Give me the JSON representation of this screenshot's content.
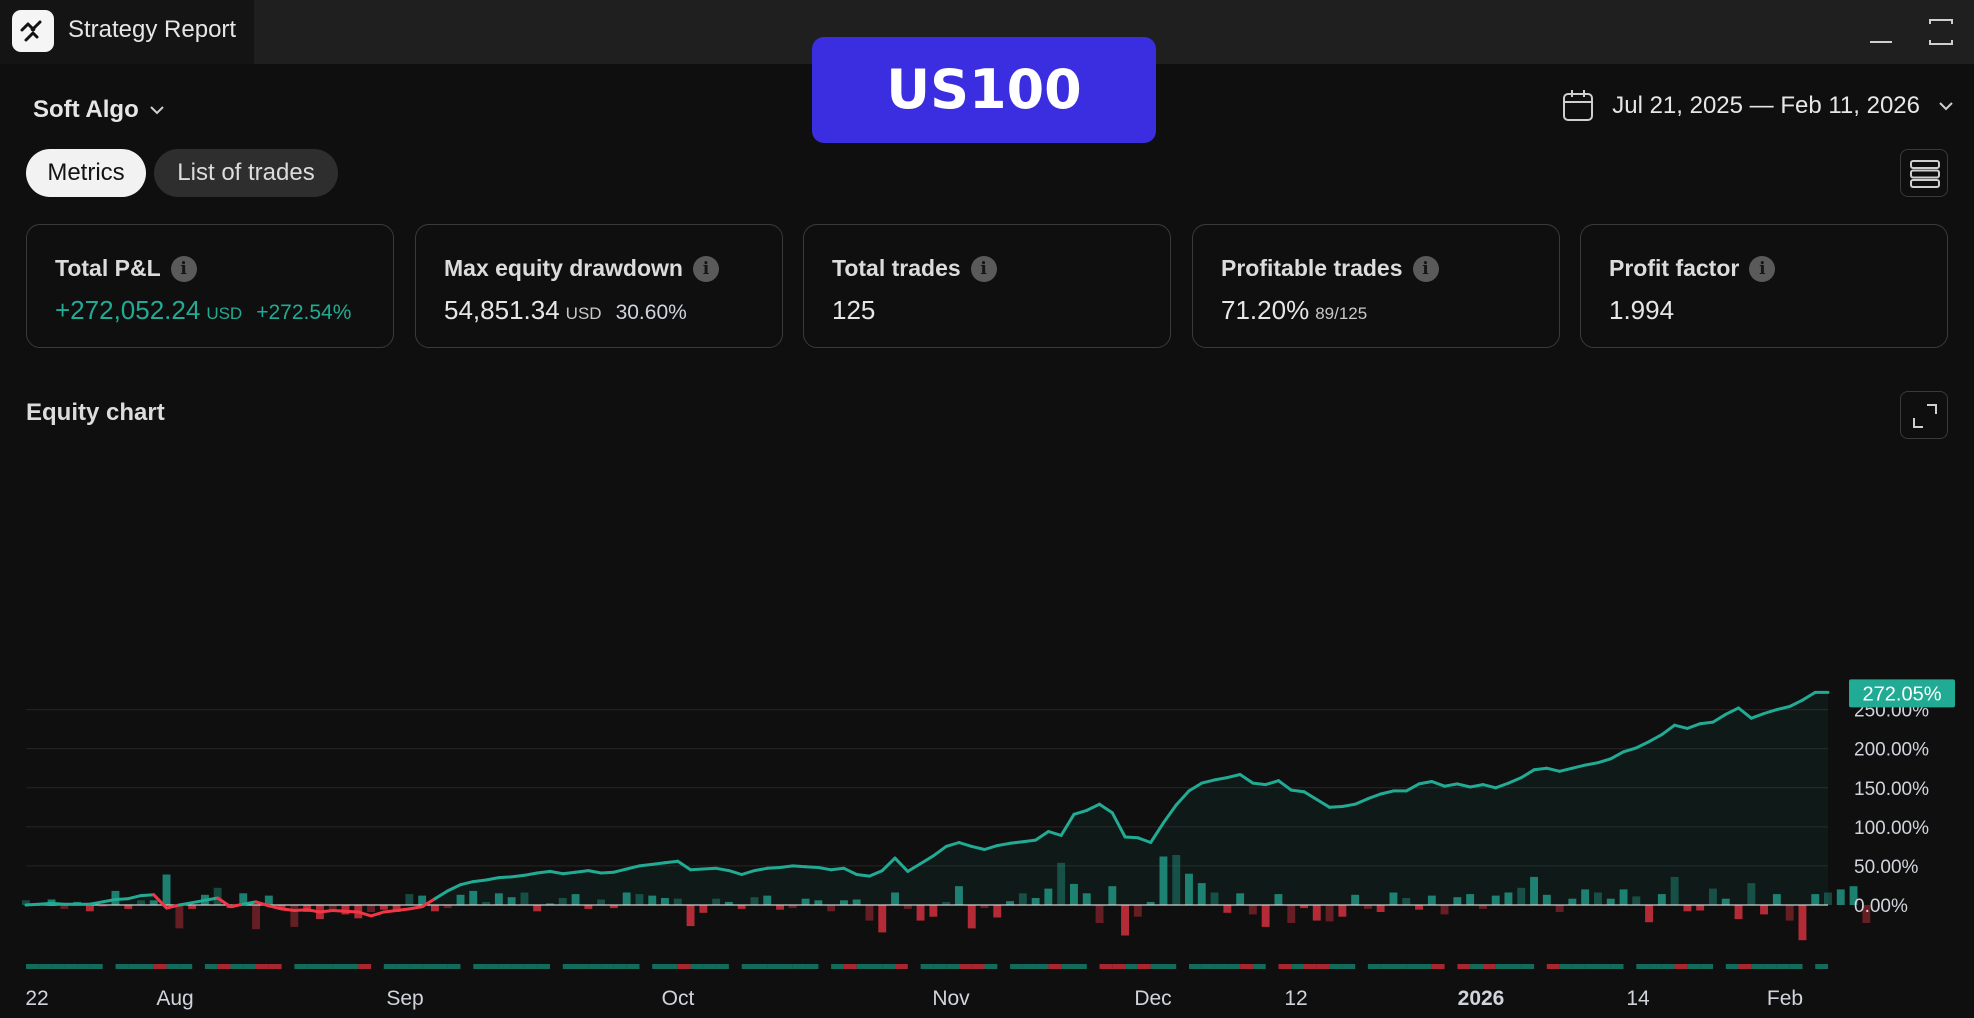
{
  "window": {
    "title": "Strategy Report",
    "app_icon": "strategy-report-icon"
  },
  "symbol": "US100",
  "strategy": {
    "name": "Soft Algo"
  },
  "date_range": "Jul 21, 2025 — Feb 11, 2026",
  "tabs": [
    {
      "label": "Metrics",
      "active": true
    },
    {
      "label": "List of trades",
      "active": false
    }
  ],
  "metrics": [
    {
      "title": "Total P&L",
      "value": "+272,052.24",
      "unit": "USD",
      "percent": "+272.54%",
      "color": "#22ab94"
    },
    {
      "title": "Max equity drawdown",
      "value": "54,851.34",
      "unit": "USD",
      "percent": "30.60%"
    },
    {
      "title": "Total trades",
      "value": "125"
    },
    {
      "title": "Profitable trades",
      "value": "71.20%",
      "unit": "89/125"
    },
    {
      "title": "Profit factor",
      "value": "1.994"
    }
  ],
  "equity_chart": {
    "title": "Equity chart"
  },
  "colors": {
    "accent": "#22ab94",
    "loss": "#f23645",
    "badge": "#3a2ee0",
    "background": "#0f0f0f"
  },
  "chart_data": {
    "type": "line",
    "title": "Equity chart",
    "y_unit": "%",
    "ylim": [
      -40,
      290
    ],
    "y_ticks": [
      "250.00%",
      "200.00%",
      "150.00%",
      "100.00%",
      "50.00%",
      "0.00%"
    ],
    "x_ticks": [
      "22",
      "Aug",
      "Sep",
      "Oct",
      "Nov",
      "Dec",
      "12",
      "2026",
      "14",
      "Feb"
    ],
    "last_value_label": "272.05%",
    "series": [
      {
        "values": [
          0,
          1,
          2,
          1,
          1,
          1,
          4,
          7,
          8,
          12,
          13,
          -4,
          0,
          3,
          6,
          9,
          -2,
          1,
          4,
          -1,
          -5,
          -7,
          -6,
          -9,
          -7,
          -8,
          -9,
          -14,
          -9,
          -7,
          -5,
          -2,
          8,
          18,
          26,
          30,
          32,
          35,
          36,
          38,
          41,
          43,
          40,
          42,
          44,
          41,
          42,
          46,
          50,
          52,
          54,
          56,
          45,
          46,
          47,
          44,
          39,
          44,
          47,
          48,
          50,
          49,
          48,
          45,
          47,
          39,
          37,
          44,
          60,
          43,
          53,
          63,
          75,
          80,
          75,
          71,
          76,
          79,
          81,
          83,
          94,
          89,
          116,
          121,
          129,
          118,
          87,
          86,
          80,
          105,
          128,
          146,
          156,
          160,
          163,
          167,
          156,
          154,
          159,
          147,
          145,
          135,
          125,
          126,
          129,
          136,
          142,
          146,
          146,
          155,
          158,
          152,
          155,
          151,
          154,
          150,
          156,
          163,
          173,
          175,
          171,
          175,
          179,
          182,
          187,
          196,
          201,
          209,
          218,
          230,
          226,
          232,
          234,
          244,
          252,
          239,
          245,
          250,
          254,
          262,
          272,
          272
        ]
      },
      {
        "values": [
          6,
          2,
          7,
          -5,
          4,
          -8,
          -2,
          18,
          -5,
          6,
          6,
          39,
          -30,
          -5,
          13,
          22,
          -4,
          15,
          -31,
          12,
          -6,
          -28,
          -9,
          -18,
          -6,
          -12,
          -17,
          -9,
          -6,
          -9,
          14,
          12,
          -8,
          -4,
          13,
          18,
          4,
          15,
          10,
          16,
          -8,
          2,
          9,
          14,
          -5,
          7,
          -4,
          16,
          14,
          12,
          9,
          8,
          -27,
          -10,
          8,
          4,
          -5,
          10,
          12,
          -6,
          -4,
          8,
          6,
          -8,
          6,
          7,
          -20,
          -35,
          16,
          -5,
          -20,
          -15,
          4,
          24,
          -30,
          -4,
          -16,
          5,
          15,
          9,
          21,
          54,
          27,
          15,
          -23,
          24,
          -39,
          -15,
          4,
          62,
          64,
          40,
          28,
          16,
          -10,
          15,
          -12,
          -28,
          14,
          -23,
          -4,
          -20,
          -21,
          -15,
          13,
          -5,
          -9,
          16,
          9,
          -6,
          12,
          -12,
          10,
          14,
          -5,
          12,
          16,
          22,
          36,
          13,
          -9,
          8,
          20,
          16,
          8,
          20,
          11,
          -22,
          14,
          36,
          -8,
          -7,
          21,
          8,
          -18,
          28,
          -12,
          14,
          -20,
          -45,
          14,
          16,
          20,
          24,
          -23
        ]
      }
    ]
  }
}
